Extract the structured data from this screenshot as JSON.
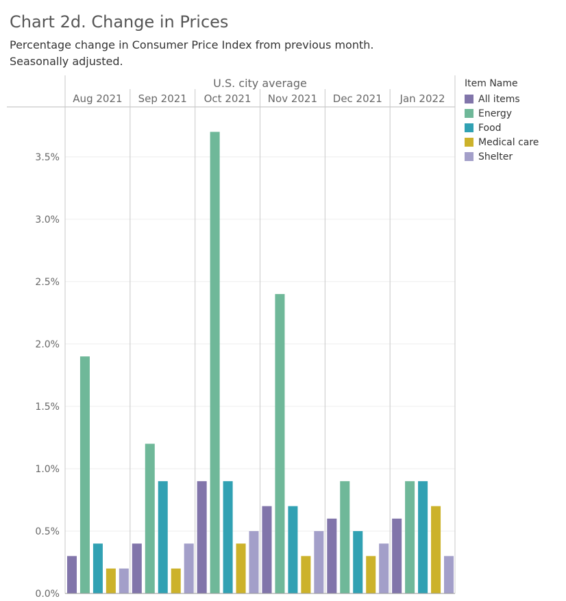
{
  "title": "Chart 2d. Change in Prices",
  "subtitle_lines": [
    "Percentage change in Consumer Price Index from previous month.",
    "Seasonally adjusted."
  ],
  "chart_data": {
    "type": "bar",
    "header": "U.S. city average",
    "categories": [
      "Aug 2021",
      "Sep 2021",
      "Oct 2021",
      "Nov 2021",
      "Dec 2021",
      "Jan 2022"
    ],
    "series": [
      {
        "name": "All items",
        "color": "#8175aa",
        "values": [
          0.3,
          0.4,
          0.9,
          0.7,
          0.6,
          0.6
        ]
      },
      {
        "name": "Energy",
        "color": "#6fb899",
        "values": [
          1.9,
          1.2,
          3.7,
          2.4,
          0.9,
          0.9
        ]
      },
      {
        "name": "Food",
        "color": "#31a1b3",
        "values": [
          0.4,
          0.9,
          0.9,
          0.7,
          0.5,
          0.9
        ]
      },
      {
        "name": "Medical care",
        "color": "#ccb22b",
        "values": [
          0.2,
          0.2,
          0.4,
          0.3,
          0.3,
          0.7
        ]
      },
      {
        "name": "Shelter",
        "color": "#a39fc9",
        "values": [
          0.2,
          0.4,
          0.5,
          0.5,
          0.4,
          0.3
        ]
      }
    ],
    "ylim": [
      0,
      3.9
    ],
    "yticks": [
      0,
      0.5,
      1.0,
      1.5,
      2.0,
      2.5,
      3.0,
      3.5
    ],
    "ytick_labels": [
      "0.0%",
      "0.5%",
      "1.0%",
      "1.5%",
      "2.0%",
      "2.5%",
      "3.0%",
      "3.5%"
    ],
    "legend_title": "Item Name",
    "legend_position": "right",
    "grid": true
  }
}
